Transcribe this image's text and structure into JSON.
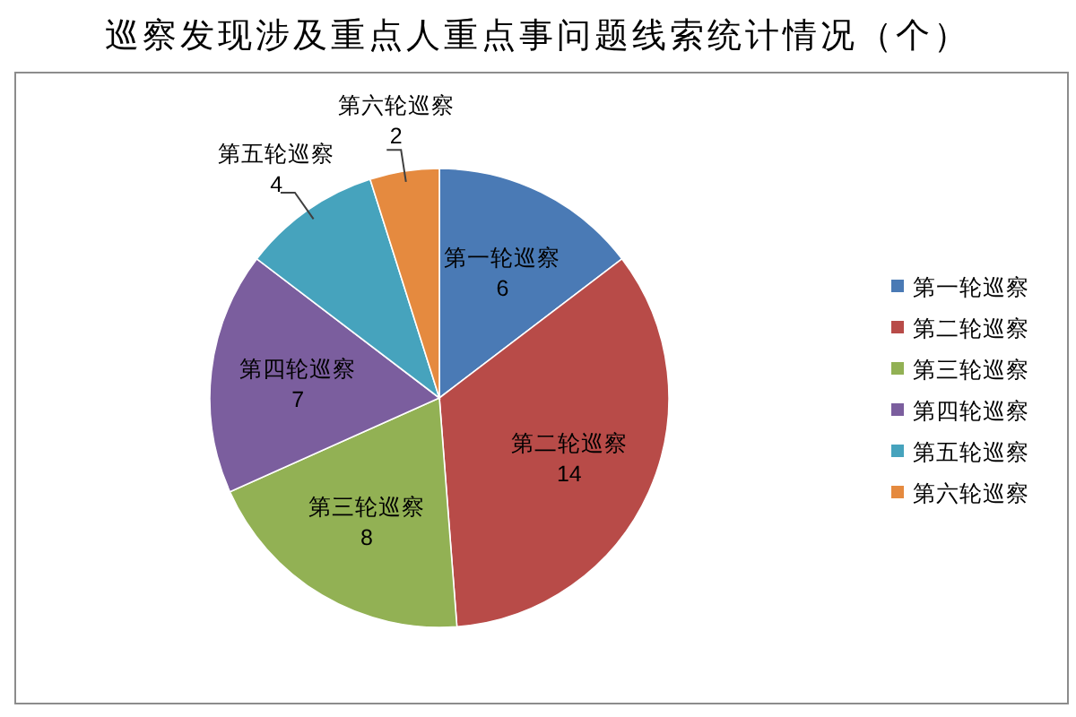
{
  "chart_data": {
    "type": "pie",
    "title": "巡察发现涉及重点人重点事问题线索统计情况（个）",
    "categories": [
      "第一轮巡察",
      "第二轮巡察",
      "第三轮巡察",
      "第四轮巡察",
      "第五轮巡察",
      "第六轮巡察"
    ],
    "values": [
      6,
      14,
      8,
      7,
      4,
      2
    ],
    "colors": [
      "#4a7ab5",
      "#b84b48",
      "#92b154",
      "#7b5e9e",
      "#46a3bd",
      "#e58a3f"
    ],
    "data_labels": true,
    "legend": "right"
  }
}
